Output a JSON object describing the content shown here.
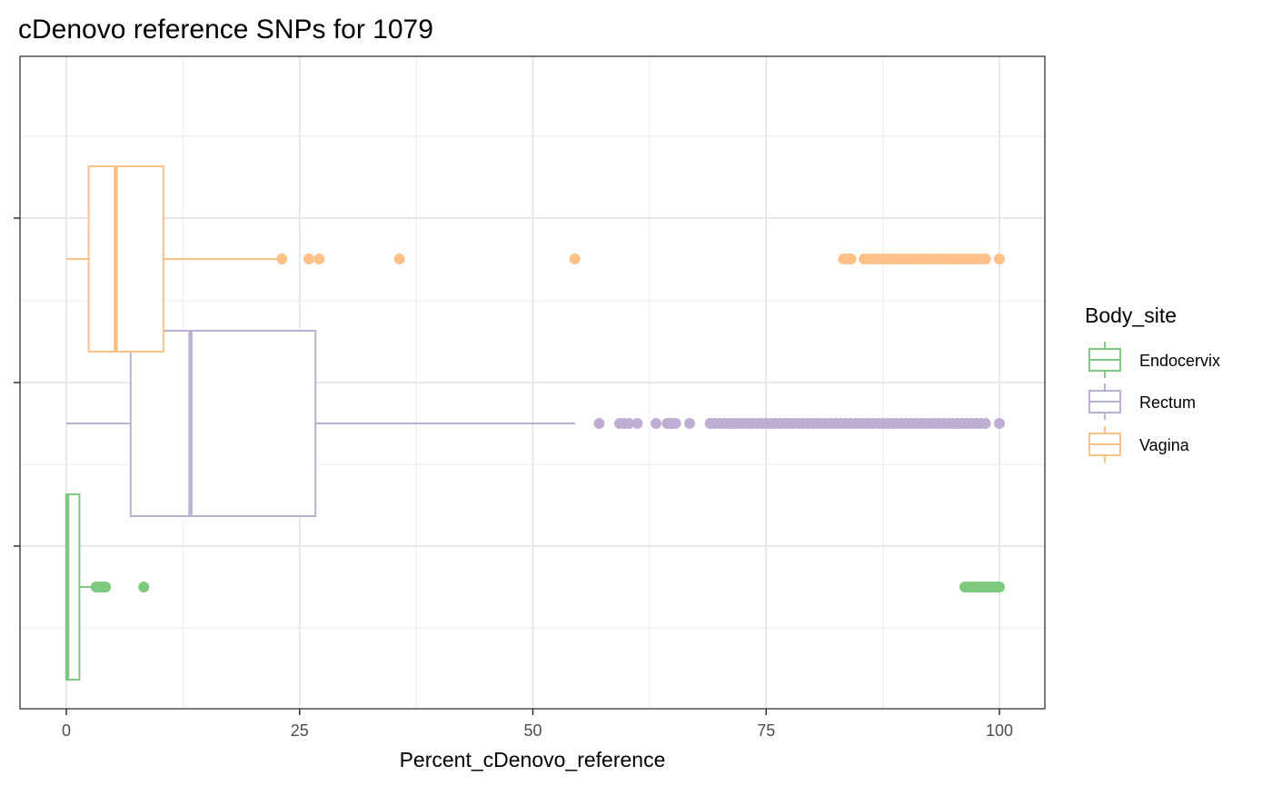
{
  "chart_data": {
    "type": "boxplot",
    "orientation": "horizontal",
    "title": "cDenovo reference SNPs for 1079",
    "xlabel": "Percent_cDenovo_reference",
    "ylabel": "",
    "xlim": [
      -2.5,
      105
    ],
    "xticks": [
      0,
      25,
      50,
      75,
      100
    ],
    "xtick_labels": [
      "0",
      "25",
      "50",
      "75",
      "100"
    ],
    "grid": true,
    "legend": {
      "title": "Body_site",
      "position": "right",
      "entries": [
        "Endocervix",
        "Rectum",
        "Vagina"
      ]
    },
    "series": [
      {
        "name": "Endocervix",
        "color": "#7FC97F",
        "min": 0,
        "q1": 0,
        "median": 0.1,
        "q3": 1.4,
        "max": 3.0,
        "outliers": [
          3.2,
          3.4,
          3.6,
          3.8,
          4.0,
          4.2,
          8.3,
          96.3,
          96.6,
          96.9,
          97.2,
          97.5,
          97.7,
          97.9,
          98.1,
          98.3,
          98.5,
          98.7,
          98.9,
          99.1,
          99.3,
          99.5,
          99.7,
          99.9,
          100
        ]
      },
      {
        "name": "Rectum",
        "color": "#BEAED4",
        "min": 0,
        "q1": 6.9,
        "median": 13.3,
        "q3": 26.7,
        "max": 54.5,
        "outliers": [
          57.1,
          59.3,
          59.8,
          60.3,
          61.2,
          63.2,
          64.4,
          64.7,
          65.0,
          65.3,
          66.8,
          69.0,
          69.5,
          70.0,
          70.5,
          71.0,
          71.5,
          72.0,
          72.5,
          73.0,
          73.5,
          74.0,
          74.5,
          75.0,
          75.5,
          76.0,
          76.5,
          77.0,
          77.5,
          78.0,
          78.5,
          79.0,
          79.5,
          80.0,
          80.5,
          81.0,
          81.5,
          82.0,
          82.5,
          83.0,
          83.5,
          84.0,
          84.5,
          85.0,
          85.5,
          86.0,
          86.5,
          87.0,
          87.5,
          88.0,
          88.5,
          89.0,
          89.5,
          90.0,
          90.5,
          91.0,
          91.5,
          92.0,
          92.5,
          93.0,
          93.5,
          94.0,
          94.5,
          95.0,
          95.5,
          96.0,
          96.5,
          97.0,
          97.5,
          98.0,
          98.5,
          100
        ]
      },
      {
        "name": "Vagina",
        "color": "#FDC086",
        "min": 0,
        "q1": 2.4,
        "median": 5.3,
        "q3": 10.4,
        "max": 22.5,
        "outliers": [
          23.1,
          26.0,
          27.1,
          35.7,
          54.5,
          83.3,
          83.7,
          84.1,
          85.5,
          86.0,
          86.5,
          87.0,
          87.5,
          88.0,
          88.5,
          89.0,
          89.5,
          90.0,
          90.5,
          91.0,
          91.5,
          92.0,
          92.5,
          93.0,
          93.5,
          94.0,
          94.5,
          95.0,
          95.5,
          96.0,
          96.5,
          97.0,
          97.5,
          98.0,
          98.5,
          100
        ]
      }
    ]
  }
}
